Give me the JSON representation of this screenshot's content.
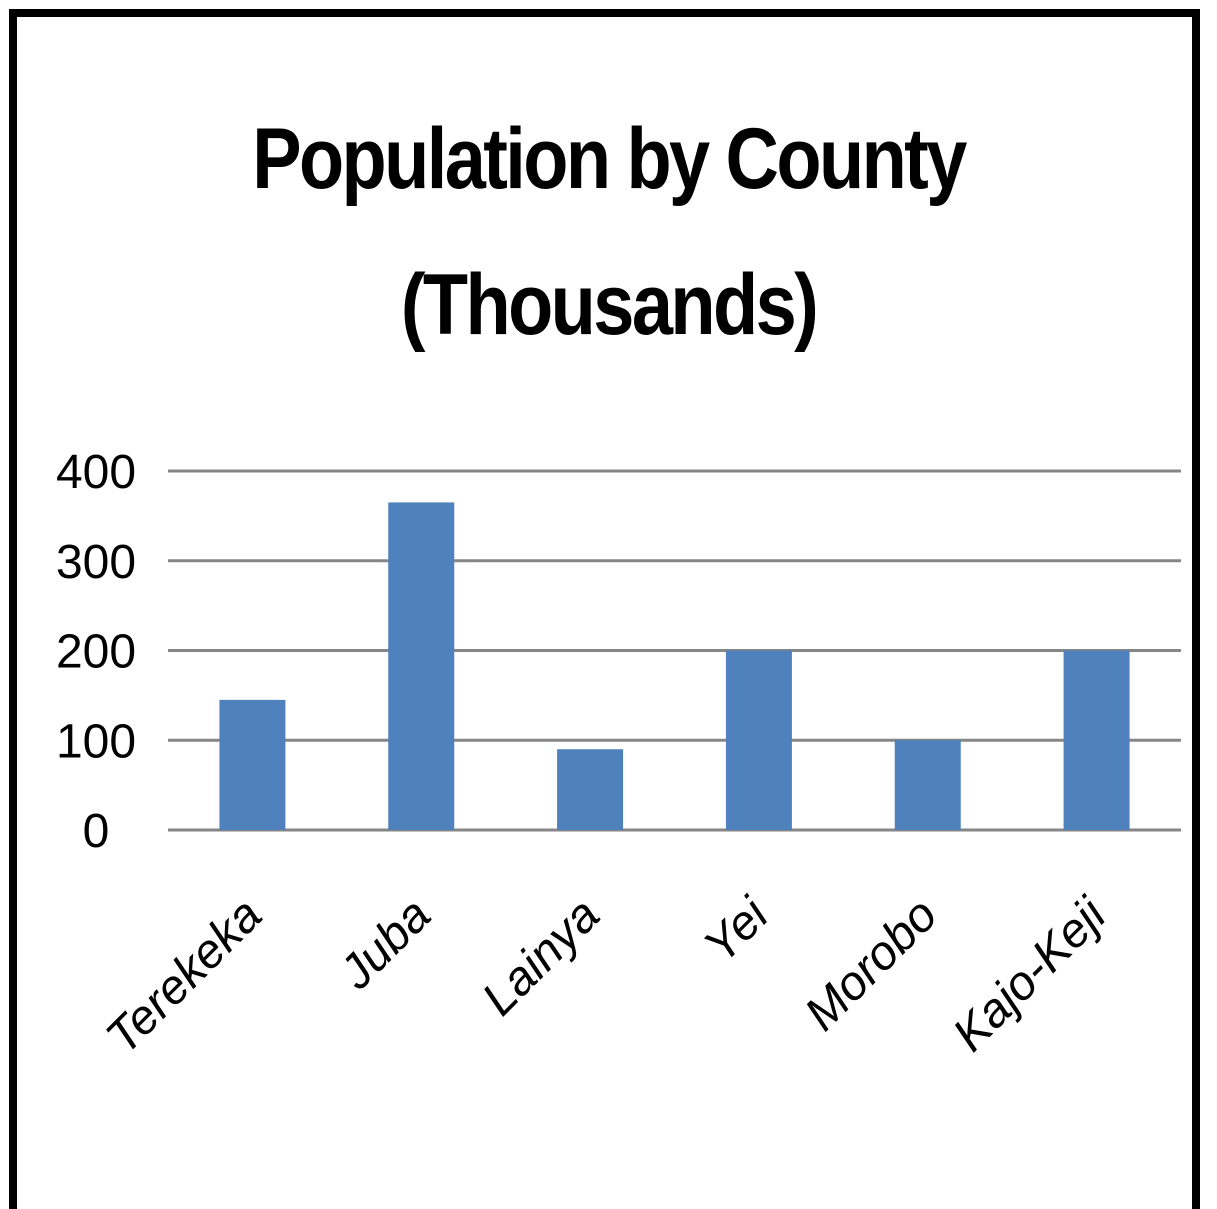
{
  "chart_data": {
    "type": "bar",
    "title_line1": "Population by County",
    "title_line2": "(Thousands)",
    "categories": [
      "Terekeka",
      "Juba",
      "Lainya",
      "Yei",
      "Morobo",
      "Kajo-Keji"
    ],
    "values": [
      145,
      365,
      90,
      200,
      100,
      200
    ],
    "ylim": [
      0,
      400
    ],
    "yticks": [
      "0",
      "100",
      "200",
      "300",
      "400"
    ],
    "grid": true,
    "legend": "none",
    "bar_color": "#4f81bd",
    "grid_color": "#868686"
  }
}
